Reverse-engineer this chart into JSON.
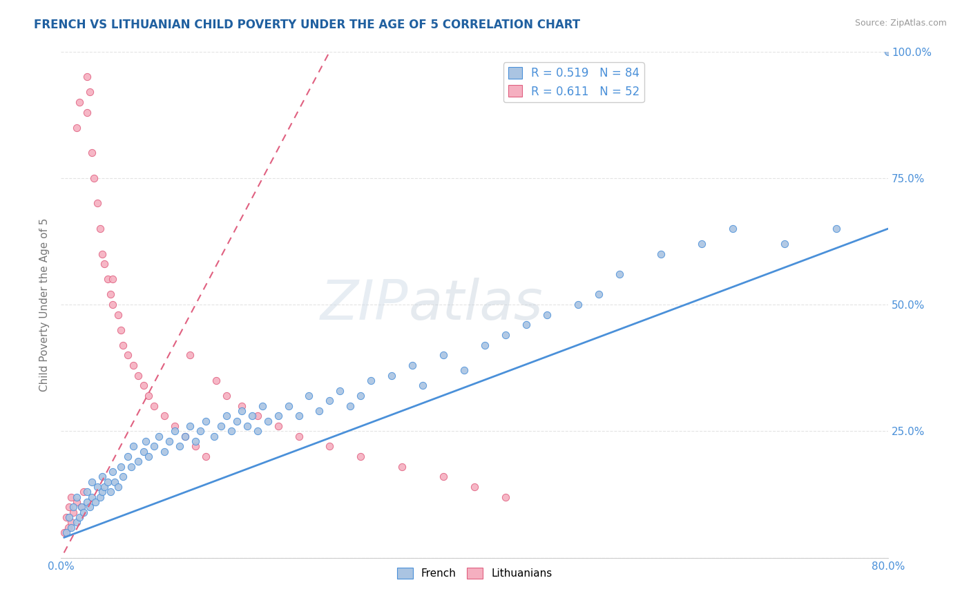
{
  "title": "FRENCH VS LITHUANIAN CHILD POVERTY UNDER THE AGE OF 5 CORRELATION CHART",
  "source": "Source: ZipAtlas.com",
  "ylabel": "Child Poverty Under the Age of 5",
  "xlim": [
    0.0,
    0.8
  ],
  "ylim": [
    0.0,
    1.0
  ],
  "xticks": [
    0.0,
    0.1,
    0.2,
    0.3,
    0.4,
    0.5,
    0.6,
    0.7,
    0.8
  ],
  "xticklabels": [
    "0.0%",
    "",
    "",
    "",
    "",
    "",
    "",
    "",
    "80.0%"
  ],
  "yticks": [
    0.0,
    0.25,
    0.5,
    0.75,
    1.0
  ],
  "yticklabels": [
    "",
    "25.0%",
    "50.0%",
    "75.0%",
    "100.0%"
  ],
  "legend1_r": "0.519",
  "legend1_n": "84",
  "legend2_r": "0.611",
  "legend2_n": "52",
  "french_color": "#aac4e2",
  "lithuanian_color": "#f5afc0",
  "french_line_color": "#4a90d9",
  "lithuanian_line_color": "#e06080",
  "watermark": "ZIPatlas",
  "french_x": [
    0.005,
    0.008,
    0.01,
    0.012,
    0.015,
    0.015,
    0.018,
    0.02,
    0.022,
    0.025,
    0.025,
    0.028,
    0.03,
    0.03,
    0.033,
    0.035,
    0.038,
    0.04,
    0.04,
    0.042,
    0.045,
    0.048,
    0.05,
    0.052,
    0.055,
    0.058,
    0.06,
    0.065,
    0.068,
    0.07,
    0.075,
    0.08,
    0.082,
    0.085,
    0.09,
    0.095,
    0.1,
    0.105,
    0.11,
    0.115,
    0.12,
    0.125,
    0.13,
    0.135,
    0.14,
    0.148,
    0.155,
    0.16,
    0.165,
    0.17,
    0.175,
    0.18,
    0.185,
    0.19,
    0.195,
    0.2,
    0.21,
    0.22,
    0.23,
    0.24,
    0.25,
    0.26,
    0.27,
    0.28,
    0.29,
    0.3,
    0.32,
    0.34,
    0.35,
    0.37,
    0.39,
    0.41,
    0.43,
    0.45,
    0.47,
    0.5,
    0.52,
    0.54,
    0.58,
    0.62,
    0.65,
    0.7,
    0.75,
    0.8
  ],
  "french_y": [
    0.05,
    0.08,
    0.06,
    0.1,
    0.07,
    0.12,
    0.08,
    0.1,
    0.09,
    0.11,
    0.13,
    0.1,
    0.12,
    0.15,
    0.11,
    0.14,
    0.12,
    0.13,
    0.16,
    0.14,
    0.15,
    0.13,
    0.17,
    0.15,
    0.14,
    0.18,
    0.16,
    0.2,
    0.18,
    0.22,
    0.19,
    0.21,
    0.23,
    0.2,
    0.22,
    0.24,
    0.21,
    0.23,
    0.25,
    0.22,
    0.24,
    0.26,
    0.23,
    0.25,
    0.27,
    0.24,
    0.26,
    0.28,
    0.25,
    0.27,
    0.29,
    0.26,
    0.28,
    0.25,
    0.3,
    0.27,
    0.28,
    0.3,
    0.28,
    0.32,
    0.29,
    0.31,
    0.33,
    0.3,
    0.32,
    0.35,
    0.36,
    0.38,
    0.34,
    0.4,
    0.37,
    0.42,
    0.44,
    0.46,
    0.48,
    0.5,
    0.52,
    0.56,
    0.6,
    0.62,
    0.65,
    0.62,
    0.65,
    1.0
  ],
  "lithuanian_x": [
    0.003,
    0.005,
    0.007,
    0.008,
    0.01,
    0.01,
    0.012,
    0.015,
    0.015,
    0.018,
    0.02,
    0.022,
    0.025,
    0.025,
    0.028,
    0.03,
    0.032,
    0.035,
    0.038,
    0.04,
    0.042,
    0.045,
    0.048,
    0.05,
    0.055,
    0.058,
    0.06,
    0.065,
    0.07,
    0.075,
    0.08,
    0.085,
    0.09,
    0.1,
    0.11,
    0.12,
    0.13,
    0.14,
    0.15,
    0.16,
    0.175,
    0.19,
    0.21,
    0.23,
    0.26,
    0.29,
    0.33,
    0.37,
    0.4,
    0.43,
    0.125,
    0.05
  ],
  "lithuanian_y": [
    0.05,
    0.08,
    0.06,
    0.1,
    0.07,
    0.12,
    0.09,
    0.11,
    0.85,
    0.9,
    0.1,
    0.13,
    0.95,
    0.88,
    0.92,
    0.8,
    0.75,
    0.7,
    0.65,
    0.6,
    0.58,
    0.55,
    0.52,
    0.5,
    0.48,
    0.45,
    0.42,
    0.4,
    0.38,
    0.36,
    0.34,
    0.32,
    0.3,
    0.28,
    0.26,
    0.24,
    0.22,
    0.2,
    0.35,
    0.32,
    0.3,
    0.28,
    0.26,
    0.24,
    0.22,
    0.2,
    0.18,
    0.16,
    0.14,
    0.12,
    0.4,
    0.55
  ],
  "french_trend_x": [
    0.003,
    0.8
  ],
  "french_trend_y": [
    0.04,
    0.65
  ],
  "lithuanian_trend_x": [
    0.003,
    0.26
  ],
  "lithuanian_trend_y": [
    0.01,
    1.0
  ],
  "background_color": "#ffffff",
  "grid_color": "#dddddd",
  "title_color": "#2060a0",
  "axis_label_color": "#777777",
  "tick_label_color": "#4a90d9"
}
